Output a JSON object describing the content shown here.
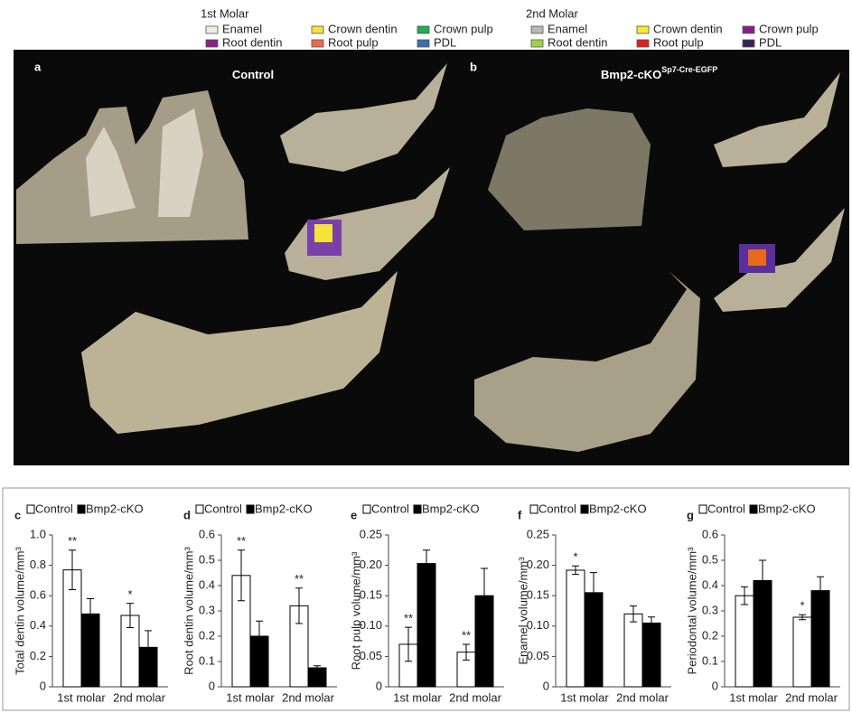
{
  "figure_legend": [
    {
      "title": "1st Molar",
      "items": [
        {
          "name": "Enamel",
          "color": "#f2ece0"
        },
        {
          "name": "Crown dentin",
          "color": "#f5e23a"
        },
        {
          "name": "Crown pulp",
          "color": "#1fae5a"
        },
        {
          "name": "Root dentin",
          "color": "#8a1f8a"
        },
        {
          "name": "Root pulp",
          "color": "#f06a4a"
        },
        {
          "name": "PDL",
          "color": "#3c6ab5"
        }
      ]
    },
    {
      "title": "2nd Molar",
      "items": [
        {
          "name": "Enamel",
          "color": "#b8b8b8"
        },
        {
          "name": "Crown dentin",
          "color": "#f1ee2c"
        },
        {
          "name": "Crown pulp",
          "color": "#8b1b8a"
        },
        {
          "name": "Root dentin",
          "color": "#9bd443"
        },
        {
          "name": "Root pulp",
          "color": "#e0201b"
        },
        {
          "name": "PDL",
          "color": "#3a1f5a"
        }
      ]
    }
  ],
  "panels": [
    {
      "label": "a",
      "title": "Control"
    },
    {
      "label": "b",
      "title": "Bmp2-cKO",
      "superscript": "Sp7-Cre-EGFP"
    }
  ],
  "chart_data": [
    {
      "type": "bar",
      "label": "c",
      "ylabel": "Total dentin volume/mm³",
      "categories": [
        "1st molar",
        "2nd molar"
      ],
      "series": [
        {
          "name": "Control",
          "color": "#ffffff",
          "values": [
            0.77,
            0.47
          ],
          "errors": [
            0.13,
            0.08
          ]
        },
        {
          "name": "Bmp2-cKO",
          "color": "#000000",
          "values": [
            0.48,
            0.26
          ],
          "errors": [
            0.1,
            0.11
          ]
        }
      ],
      "annotations": [
        "**",
        "*"
      ],
      "ylim": [
        0,
        1
      ],
      "yticks": [
        0,
        0.2,
        0.4,
        0.6,
        0.8,
        {
          "value": 1,
          "label": "1.0"
        }
      ]
    },
    {
      "type": "bar",
      "label": "d",
      "ylabel": "Root dentin volume/mm³",
      "categories": [
        "1st molar",
        "2nd molar"
      ],
      "series": [
        {
          "name": "Control",
          "color": "#ffffff",
          "values": [
            0.44,
            0.32
          ],
          "errors": [
            0.1,
            0.07
          ]
        },
        {
          "name": "Bmp2-cKO",
          "color": "#000000",
          "values": [
            0.2,
            0.075
          ],
          "errors": [
            0.06,
            0.008
          ]
        }
      ],
      "annotations": [
        "**",
        "**"
      ],
      "ylim": [
        0,
        0.6
      ],
      "yticks": [
        0,
        0.1,
        0.2,
        0.3,
        0.4,
        0.5,
        0.6
      ]
    },
    {
      "type": "bar",
      "label": "e",
      "ylabel": "Root pulp volume/mm³",
      "categories": [
        "1st molar",
        "2nd molar"
      ],
      "series": [
        {
          "name": "Control",
          "color": "#ffffff",
          "values": [
            0.07,
            0.057
          ],
          "errors": [
            0.028,
            0.013
          ]
        },
        {
          "name": "Bmp2-cKO",
          "color": "#000000",
          "values": [
            0.203,
            0.15
          ],
          "errors": [
            0.022,
            0.045
          ]
        }
      ],
      "annotations": [
        "**",
        "**"
      ],
      "ylim": [
        0,
        0.25
      ],
      "yticks": [
        0,
        0.05,
        {
          "value": 0.1,
          "label": "0.10"
        },
        0.15,
        {
          "value": 0.2,
          "label": "0.20"
        },
        0.25
      ]
    },
    {
      "type": "bar",
      "label": "f",
      "ylabel": "Enamel volume/mm³",
      "categories": [
        "1st molar",
        "2nd molar"
      ],
      "series": [
        {
          "name": "Control",
          "color": "#ffffff",
          "values": [
            0.192,
            0.12
          ],
          "errors": [
            0.007,
            0.013
          ]
        },
        {
          "name": "Bmp2-cKO",
          "color": "#000000",
          "values": [
            0.155,
            0.105
          ],
          "errors": [
            0.033,
            0.01
          ]
        }
      ],
      "annotations": [
        "*",
        null
      ],
      "ylim": [
        0,
        0.25
      ],
      "yticks": [
        0,
        0.05,
        {
          "value": 0.1,
          "label": "0.10"
        },
        0.15,
        {
          "value": 0.2,
          "label": "0.20"
        },
        0.25
      ]
    },
    {
      "type": "bar",
      "label": "g",
      "ylabel": "Periodontal volume/mm³",
      "categories": [
        "1st molar",
        "2nd molar"
      ],
      "series": [
        {
          "name": "Control",
          "color": "#ffffff",
          "values": [
            0.36,
            0.275
          ],
          "errors": [
            0.035,
            0.01
          ]
        },
        {
          "name": "Bmp2-cKO",
          "color": "#000000",
          "values": [
            0.42,
            0.38
          ],
          "errors": [
            0.08,
            0.055
          ]
        }
      ],
      "annotations": [
        null,
        "*"
      ],
      "ylim": [
        0,
        0.6
      ],
      "yticks": [
        0,
        0.1,
        0.2,
        0.3,
        0.4,
        0.5,
        0.6
      ]
    }
  ]
}
